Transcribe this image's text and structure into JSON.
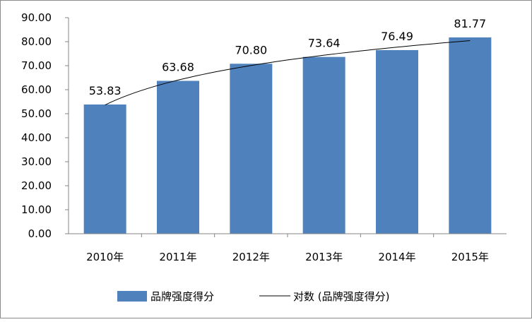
{
  "chart_data": {
    "type": "bar",
    "title": "",
    "xlabel": "",
    "ylabel": "",
    "categories": [
      "2010年",
      "2011年",
      "2012年",
      "2013年",
      "2014年",
      "2015年"
    ],
    "series": [
      {
        "name": "品牌强度得分",
        "values": [
          53.83,
          63.68,
          70.8,
          73.64,
          76.49,
          81.77
        ],
        "color": "#4f81bd"
      }
    ],
    "data_labels": [
      "53.83",
      "63.68",
      "70.80",
      "73.64",
      "76.49",
      "81.77"
    ],
    "trendline": {
      "type": "logarithmic",
      "name": "对数 (品牌强度得分)",
      "color": "#000000"
    },
    "ylim": [
      0,
      90
    ],
    "yticks": [
      "0.00",
      "10.00",
      "20.00",
      "30.00",
      "40.00",
      "50.00",
      "60.00",
      "70.00",
      "80.00",
      "90.00"
    ],
    "grid": false,
    "legend": "bottom"
  },
  "legend": {
    "bar_label": "品牌强度得分",
    "trend_label": "对数 (品牌强度得分)"
  }
}
